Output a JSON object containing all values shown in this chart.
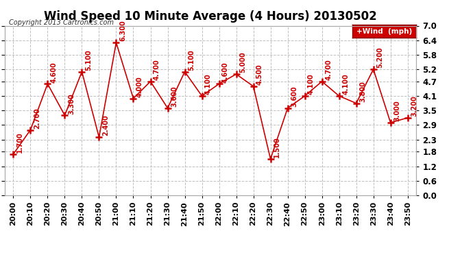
{
  "title": "Wind Speed 10 Minute Average (4 Hours) 20130502",
  "copyright": "Copyright 2013 Cartronics.com",
  "legend_label": "+Wind  (mph)",
  "x_labels": [
    "20:00",
    "20:10",
    "20:20",
    "20:30",
    "20:40",
    "20:50",
    "21:00",
    "21:10",
    "21:20",
    "21:30",
    "21:40",
    "21:50",
    "22:00",
    "22:10",
    "22:20",
    "22:30",
    "22:40",
    "22:50",
    "23:00",
    "23:10",
    "23:20",
    "23:30",
    "23:40",
    "23:50"
  ],
  "y_values": [
    1.7,
    2.7,
    4.6,
    3.3,
    5.1,
    2.4,
    6.3,
    4.0,
    4.7,
    3.6,
    5.1,
    4.1,
    4.6,
    5.0,
    4.5,
    1.5,
    3.6,
    4.1,
    4.7,
    4.1,
    3.8,
    5.2,
    3.0,
    3.2
  ],
  "value_labels": [
    "1.700",
    "2.700",
    "4.600",
    "3.300",
    "5.100",
    "2.400",
    "6.300",
    "4.000",
    "4.700",
    "3.600",
    "5.100",
    "4.100",
    "4.600",
    "5.000",
    "4.500",
    "1.500",
    "3.600",
    "4.100",
    "4.700",
    "4.100",
    "3.800",
    "5.200",
    "3.000",
    "3.200"
  ],
  "line_color": "#cc0000",
  "bg_color": "#ffffff",
  "grid_color": "#c0c0c0",
  "ylim": [
    0.0,
    7.0
  ],
  "yticks": [
    0.0,
    0.6,
    1.2,
    1.8,
    2.3,
    2.9,
    3.5,
    4.1,
    4.7,
    5.2,
    5.8,
    6.4,
    7.0
  ],
  "title_fontsize": 12,
  "label_fontsize": 8,
  "annotation_fontsize": 7,
  "copyright_fontsize": 7
}
